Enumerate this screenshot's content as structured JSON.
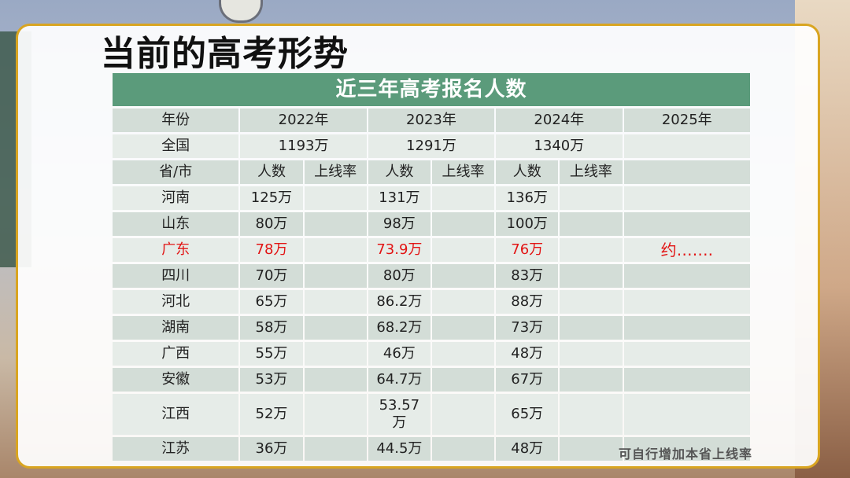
{
  "page_title": "当前的高考形势",
  "table": {
    "caption": "近三年高考报名人数",
    "header": [
      "年份",
      "2022年",
      "2023年",
      "2024年",
      "2025年"
    ],
    "national": [
      "全国",
      "1193万",
      "1291万",
      "1340万",
      ""
    ],
    "subheader": [
      "省/市",
      "人数",
      "上线率",
      "人数",
      "上线率",
      "人数",
      "上线率",
      ""
    ],
    "rows": [
      {
        "cells": [
          "河南",
          "125万",
          "",
          "131万",
          "",
          "136万",
          "",
          ""
        ]
      },
      {
        "cells": [
          "山东",
          "80万",
          "",
          "98万",
          "",
          "100万",
          "",
          ""
        ]
      },
      {
        "cells": [
          "广东",
          "78万",
          "",
          "73.9万",
          "",
          "76万",
          "",
          "约……."
        ],
        "highlight": true
      },
      {
        "cells": [
          "四川",
          "70万",
          "",
          "80万",
          "",
          "83万",
          "",
          ""
        ]
      },
      {
        "cells": [
          "河北",
          "65万",
          "",
          "86.2万",
          "",
          "88万",
          "",
          ""
        ]
      },
      {
        "cells": [
          "湖南",
          "58万",
          "",
          "68.2万",
          "",
          "73万",
          "",
          ""
        ]
      },
      {
        "cells": [
          "广西",
          "55万",
          "",
          "46万",
          "",
          "48万",
          "",
          ""
        ]
      },
      {
        "cells": [
          "安徽",
          "53万",
          "",
          "64.7万",
          "",
          "67万",
          "",
          ""
        ]
      },
      {
        "cells": [
          "江西",
          "52万",
          "",
          "53.57\n万",
          "",
          "65万",
          "",
          ""
        ]
      },
      {
        "cells": [
          "江苏",
          "36万",
          "",
          "44.5万",
          "",
          "48万",
          "",
          ""
        ]
      }
    ]
  },
  "footer_note": "可自行增加本省上线率",
  "colors": {
    "caption_bg": "#5b9b7b",
    "highlight_text": "#e21414",
    "border": "#d9a521"
  }
}
